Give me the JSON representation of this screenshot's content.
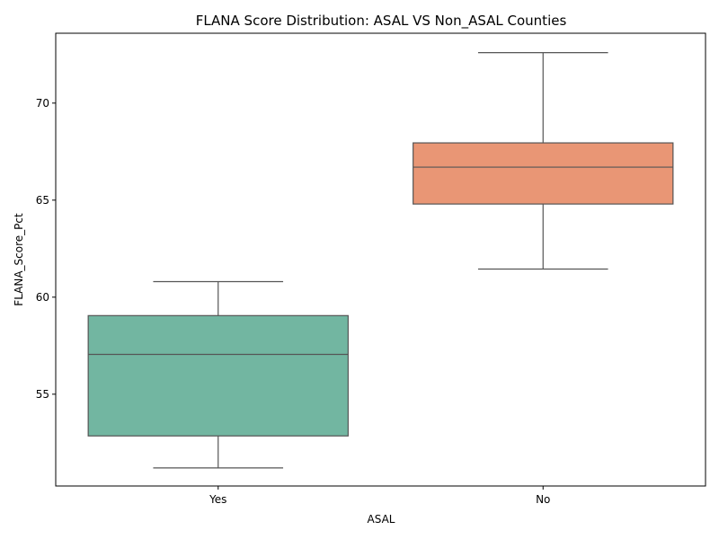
{
  "chart_data": {
    "type": "box",
    "title": "FLANA Score Distribution: ASAL VS Non_ASAL Counties",
    "xlabel": "ASAL",
    "ylabel": "FLANA_Score_Pct",
    "categories": [
      "Yes",
      "No"
    ],
    "boxes": [
      {
        "category": "Yes",
        "whisker_low": 51.2,
        "q1": 52.85,
        "median": 57.05,
        "q3": 59.05,
        "whisker_high": 60.8,
        "color": "#72b6a1"
      },
      {
        "category": "No",
        "whisker_low": 61.45,
        "q1": 64.8,
        "median": 66.7,
        "q3": 67.95,
        "whisker_high": 72.6,
        "color": "#e99675"
      }
    ],
    "ylim": [
      50.27,
      73.6
    ],
    "yticks": [
      55,
      60,
      65,
      70
    ],
    "grid": false,
    "line_color": "#555555"
  }
}
